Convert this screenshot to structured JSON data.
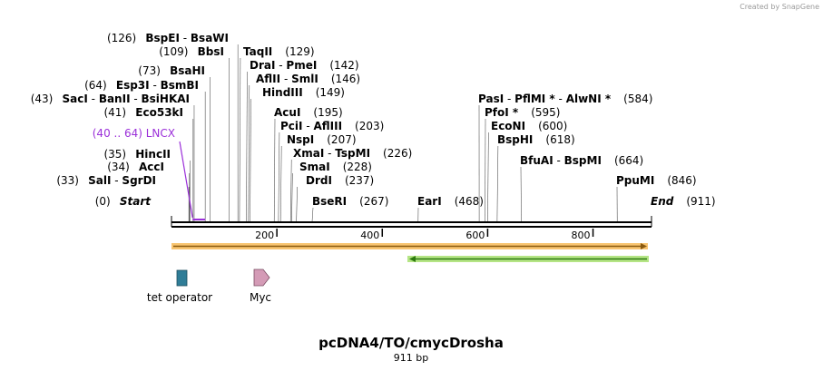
{
  "credit": "Created by SnapGene",
  "plasmid": {
    "name": "pcDNA4/TO/cmycDrosha",
    "length_label": "911 bp",
    "length": 911
  },
  "axis_ticks": [
    "200",
    "400",
    "600",
    "800"
  ],
  "axis_tick_values": [
    200,
    400,
    600,
    800
  ],
  "sites": [
    {
      "pos": "(126)",
      "enzymes": [
        " BspEI",
        " - ",
        "BsaWI"
      ],
      "bp": 126
    },
    {
      "pos": "(109)",
      "enzymes": [
        " BbsI"
      ],
      "bp": 109
    },
    {
      "pos": "(73)",
      "enzymes": [
        " BsaHI"
      ],
      "bp": 73
    },
    {
      "pos": "(64)",
      "enzymes": [
        " Esp3I",
        " - ",
        "BsmBI"
      ],
      "bp": 64
    },
    {
      "pos": "(43)",
      "enzymes": [
        " SacI",
        " - ",
        "BanII",
        " - ",
        "BsiHKAI"
      ],
      "bp": 43
    },
    {
      "pos": "(41)",
      "enzymes": [
        " Eco53kI"
      ],
      "bp": 41
    },
    {
      "pos": "(35)",
      "enzymes": [
        " HincII"
      ],
      "bp": 35
    },
    {
      "pos": "(34)",
      "enzymes": [
        " AccI"
      ],
      "bp": 34
    },
    {
      "pos": "(33)",
      "enzymes": [
        " SalI",
        " - ",
        "SgrDI"
      ],
      "bp": 33
    },
    {
      "pos": "(0)",
      "enzymes": [
        " Start"
      ],
      "bp": 0
    },
    {
      "pos": "(129)",
      "enzymes": [
        "TaqII"
      ],
      "bp": 129
    },
    {
      "pos": "(142)",
      "enzymes": [
        "DraI",
        " - ",
        "PmeI"
      ],
      "bp": 142
    },
    {
      "pos": "(146)",
      "enzymes": [
        "AflII",
        " - ",
        "SmlI"
      ],
      "bp": 146
    },
    {
      "pos": "(149)",
      "enzymes": [
        "HindIII"
      ],
      "bp": 149
    },
    {
      "pos": "(195)",
      "enzymes": [
        "AcuI"
      ],
      "bp": 195
    },
    {
      "pos": "(203)",
      "enzymes": [
        "PciI",
        " - ",
        "AflIII"
      ],
      "bp": 203
    },
    {
      "pos": "(207)",
      "enzymes": [
        "NspI"
      ],
      "bp": 207
    },
    {
      "pos": "(226)",
      "enzymes": [
        "XmaI",
        " - ",
        "TspMI"
      ],
      "bp": 226
    },
    {
      "pos": "(228)",
      "enzymes": [
        "SmaI"
      ],
      "bp": 228
    },
    {
      "pos": "(237)",
      "enzymes": [
        "DrdI"
      ],
      "bp": 237
    },
    {
      "pos": "(267)",
      "enzymes": [
        "BseRI"
      ],
      "bp": 267
    },
    {
      "pos": "(468)",
      "enzymes": [
        "EarI"
      ],
      "bp": 468
    },
    {
      "pos": "(584)",
      "enzymes": [
        "PasI",
        " - ",
        "PflMI *",
        " - ",
        "AlwNI *"
      ],
      "bp": 584
    },
    {
      "pos": "(595)",
      "enzymes": [
        "PfoI *"
      ],
      "bp": 595
    },
    {
      "pos": "(600)",
      "enzymes": [
        "EcoNI"
      ],
      "bp": 600
    },
    {
      "pos": "(618)",
      "enzymes": [
        "BspHI"
      ],
      "bp": 618
    },
    {
      "pos": "(664)",
      "enzymes": [
        "BfuAI",
        " - ",
        "BspMI"
      ],
      "bp": 664
    },
    {
      "pos": "(846)",
      "enzymes": [
        "PpuMI"
      ],
      "bp": 846
    },
    {
      "pos": "(911)",
      "enzymes": [
        "End"
      ],
      "bp": 911
    }
  ],
  "primer": {
    "label": "(40 .. 64)  LNCX",
    "start": 40,
    "end": 64,
    "color": "#9b30d9"
  },
  "features": [
    {
      "label": "tet operator",
      "color": "#2f7d97",
      "shape": "box"
    },
    {
      "label": "Myc",
      "color": "#d49bb6",
      "shape": "arrow"
    }
  ],
  "orf_tracks": [
    {
      "name": "forward-orf",
      "start": 0,
      "end": 911,
      "direction": "forward",
      "color": "#f5b040",
      "line": "#8a5a10"
    },
    {
      "name": "reverse-orf",
      "start": 452,
      "end": 911,
      "direction": "reverse",
      "color": "#a8e070",
      "line": "#2d7a10"
    }
  ],
  "colors": {
    "backbone": "#000000",
    "primer": "#9b30d9"
  }
}
